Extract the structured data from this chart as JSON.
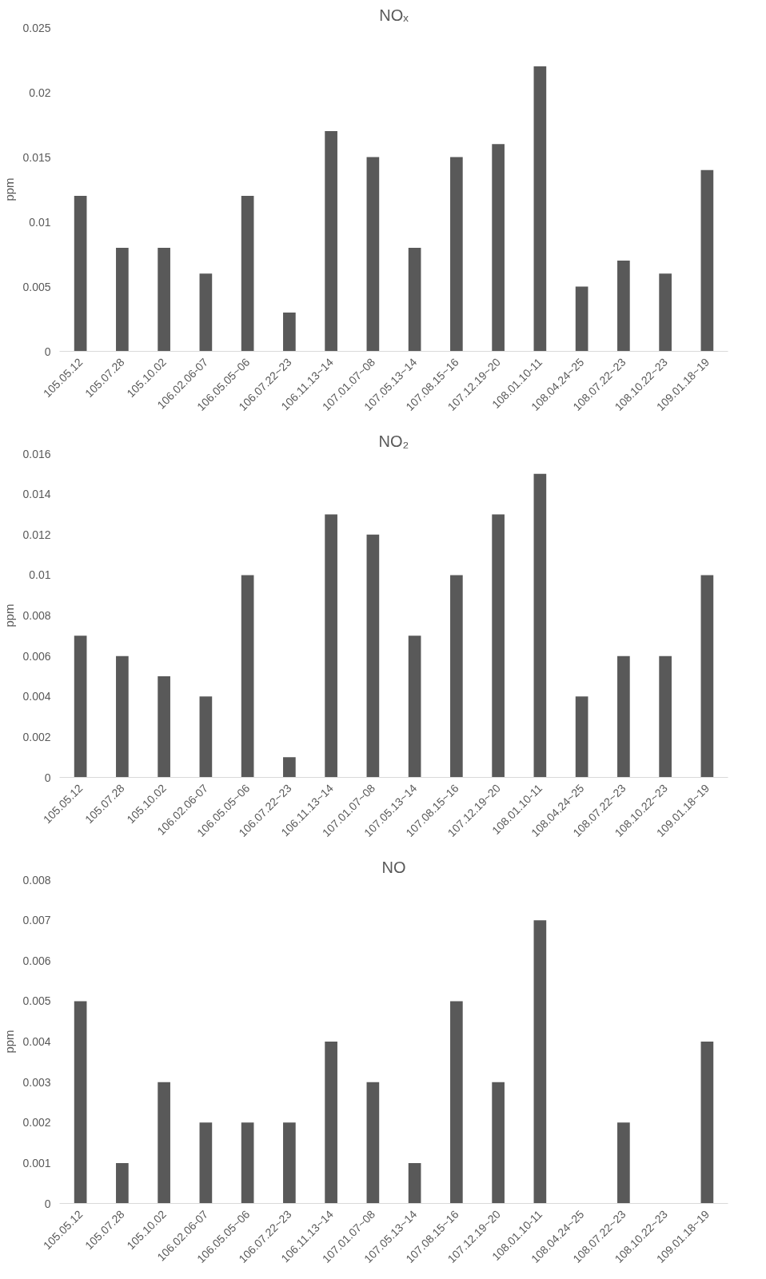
{
  "chart_data": [
    {
      "type": "bar",
      "title": "NOₓ",
      "ylabel": "ppm",
      "categories": [
        "105.05.12",
        "105.07.28",
        "105.10.02",
        "106.02.06-07",
        "106.05.05~06",
        "106.07.22~23",
        "106.11.13~14",
        "107.01.07~08",
        "107.05.13~14",
        "107.08.15~16",
        "107.12.19~20",
        "108.01.10-11",
        "108.04.24~25",
        "108.07.22~23",
        "108.10.22~23",
        "109.01.18~19"
      ],
      "values": [
        0.012,
        0.008,
        0.008,
        0.006,
        0.012,
        0.003,
        0.017,
        0.015,
        0.008,
        0.015,
        0.016,
        0.022,
        0.005,
        0.007,
        0.006,
        0.014
      ],
      "color": "#595959",
      "ylim": [
        0,
        0.025
      ],
      "yticks": [
        0,
        0.005,
        0.01,
        0.015,
        0.02,
        0.025
      ],
      "grid": false
    },
    {
      "type": "bar",
      "title": "NO₂",
      "ylabel": "ppm",
      "categories": [
        "105.05.12",
        "105.07.28",
        "105.10.02",
        "106.02.06-07",
        "106.05.05~06",
        "106.07.22~23",
        "106.11.13~14",
        "107.01.07~08",
        "107.05.13~14",
        "107.08.15~16",
        "107.12.19~20",
        "108.01.10-11",
        "108.04.24~25",
        "108.07.22~23",
        "108.10.22~23",
        "109.01.18~19"
      ],
      "values": [
        0.007,
        0.006,
        0.005,
        0.004,
        0.01,
        0.001,
        0.013,
        0.012,
        0.007,
        0.01,
        0.013,
        0.015,
        0.004,
        0.006,
        0.006,
        0.01
      ],
      "color": "#595959",
      "ylim": [
        0,
        0.016
      ],
      "yticks": [
        0,
        0.002,
        0.004,
        0.006,
        0.008,
        0.01,
        0.012,
        0.014,
        0.016
      ],
      "grid": false
    },
    {
      "type": "bar",
      "title": "NO",
      "ylabel": "ppm",
      "categories": [
        "105.05.12",
        "105.07.28",
        "105.10.02",
        "106.02.06-07",
        "106.05.05~06",
        "106.07.22~23",
        "106.11.13~14",
        "107.01.07~08",
        "107.05.13~14",
        "107.08.15~16",
        "107.12.19~20",
        "108.01.10-11",
        "108.04.24~25",
        "108.07.22~23",
        "108.10.22~23",
        "109.01.18~19"
      ],
      "values": [
        0.005,
        0.001,
        0.003,
        0.002,
        0.002,
        0.002,
        0.004,
        0.003,
        0.001,
        0.005,
        0.003,
        0.007,
        0,
        0.002,
        0,
        0.004
      ],
      "color": "#595959",
      "ylim": [
        0,
        0.008
      ],
      "yticks": [
        0,
        0.001,
        0.002,
        0.003,
        0.004,
        0.005,
        0.006,
        0.007,
        0.008
      ],
      "grid": false
    }
  ]
}
